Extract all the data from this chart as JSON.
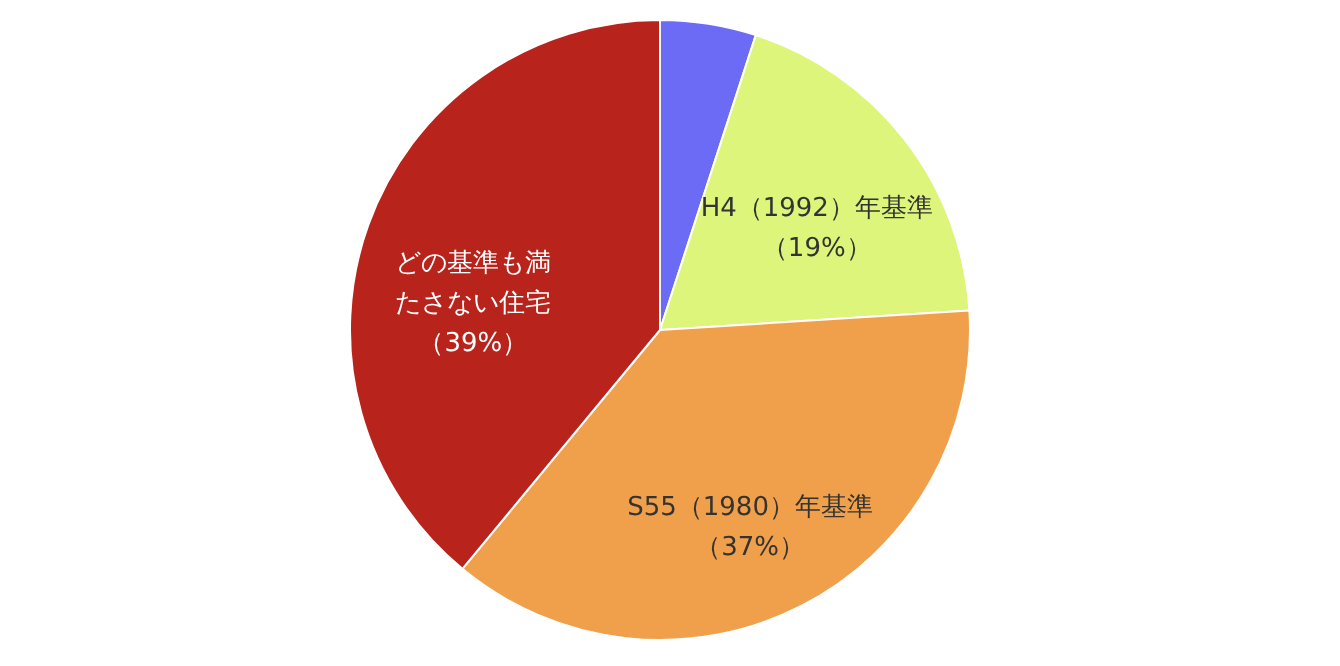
{
  "chart_data": {
    "type": "pie",
    "categories": [
      null,
      "H4（1992）年基準",
      "S55（1980）年基準",
      "どの基準も満たさない住宅"
    ],
    "values": [
      5,
      19,
      37,
      39
    ],
    "value_labels": [
      null,
      "（19%）",
      "（37%）",
      "（39%）"
    ],
    "colors": [
      "#6b6bf5",
      "#dcf57a",
      "#f0a04b",
      "#b8231c"
    ],
    "legend": false
  }
}
